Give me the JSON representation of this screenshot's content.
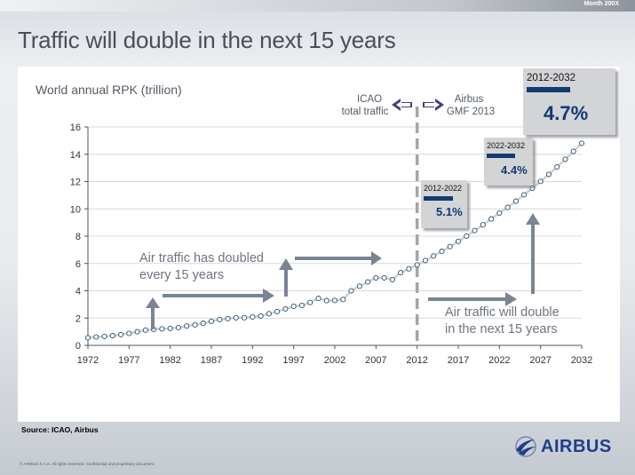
{
  "header": {
    "month_label": "Month 200X"
  },
  "slide_title": "Traffic will double in the next 15 years",
  "chart_data": {
    "type": "line",
    "ylabel": "World annual RPK (trillion)",
    "ylim": [
      0,
      16
    ],
    "xlim": [
      1972,
      2032
    ],
    "yticks": [
      0,
      2,
      4,
      6,
      8,
      10,
      12,
      14,
      16
    ],
    "xticks": [
      1972,
      1977,
      1982,
      1987,
      1992,
      1997,
      2002,
      2007,
      2012,
      2017,
      2022,
      2027,
      2032
    ],
    "grid": "horizontal",
    "series": [
      {
        "x": [
          1972,
          1973,
          1974,
          1975,
          1976,
          1977,
          1978,
          1979,
          1980,
          1981,
          1982,
          1983,
          1984,
          1985,
          1986,
          1987,
          1988,
          1989,
          1990,
          1991,
          1992,
          1993,
          1994,
          1995,
          1996,
          1997,
          1998,
          1999,
          2000,
          2001,
          2002,
          2003,
          2004,
          2005,
          2006,
          2007,
          2008,
          2009,
          2010,
          2011,
          2012,
          2013,
          2014,
          2015,
          2016,
          2017,
          2018,
          2019,
          2020,
          2021,
          2022,
          2023,
          2024,
          2025,
          2026,
          2027,
          2028,
          2029,
          2030,
          2031,
          2032
        ],
        "y": [
          0.56,
          0.62,
          0.66,
          0.71,
          0.79,
          0.88,
          1.0,
          1.12,
          1.17,
          1.21,
          1.24,
          1.3,
          1.42,
          1.51,
          1.62,
          1.76,
          1.89,
          1.96,
          2.02,
          2.03,
          2.08,
          2.15,
          2.32,
          2.48,
          2.67,
          2.86,
          2.93,
          3.14,
          3.44,
          3.28,
          3.3,
          3.36,
          4.0,
          4.34,
          4.65,
          4.94,
          4.95,
          4.82,
          5.33,
          5.61,
          5.89,
          6.22,
          6.55,
          6.89,
          7.24,
          7.62,
          8.0,
          8.41,
          8.83,
          9.26,
          9.69,
          10.11,
          10.56,
          11.03,
          11.51,
          12.01,
          12.53,
          13.07,
          13.63,
          14.21,
          14.8
        ]
      }
    ],
    "divider": {
      "x": 2012,
      "left_label": [
        "ICAO",
        "total traffic"
      ],
      "right_label": [
        "Airbus",
        "GMF 2013"
      ]
    },
    "annotations": {
      "past_text": [
        "Air traffic has doubled",
        "every 15 years"
      ],
      "future_text": [
        "Air traffic will double",
        "in the next 15 years"
      ]
    },
    "growth_boxes": [
      {
        "period": "2012-2022",
        "rate": "5.1%"
      },
      {
        "period": "2022-2032",
        "rate": "4.4%"
      },
      {
        "period": "2012-2032",
        "rate": "4.7%"
      }
    ],
    "colors": {
      "line": "#c9d0d8",
      "marker_edge": "#2f4f6e",
      "arrow": "#7b8495",
      "bar": "#123a72",
      "divider": "#a5a5a5",
      "divider_arrow": "#4b3d7a"
    }
  },
  "footer": {
    "source": "Source: ICAO, Airbus",
    "copyright": "© AIRBUS S.A.S. All rights reserved. Confidential and proprietary document.",
    "logo_text": "AIRBUS"
  }
}
